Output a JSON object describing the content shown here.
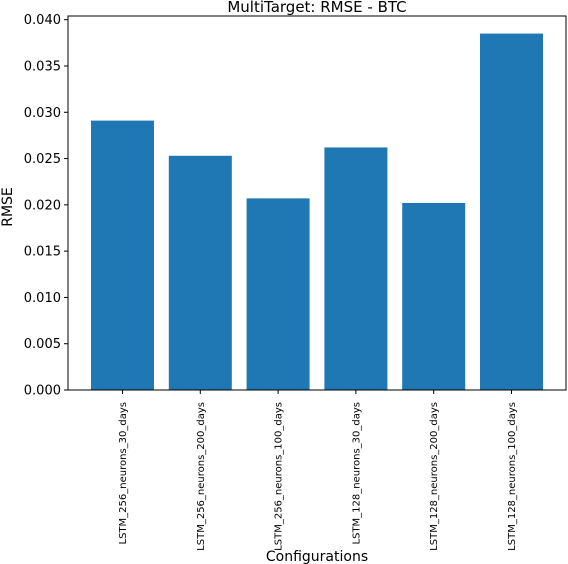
{
  "chart_data": {
    "type": "bar",
    "title": "MultiTarget: RMSE - BTC",
    "xlabel": "Configurations",
    "ylabel": "RMSE",
    "categories": [
      "LSTM_256_neurons_30_days",
      "LSTM_256_neurons_200_days",
      "LSTM_256_neurons_100_days",
      "LSTM_128_neurons_30_days",
      "LSTM_128_neurons_200_days",
      "LSTM_128_neurons_100_days"
    ],
    "values": [
      0.0291,
      0.0253,
      0.0207,
      0.0262,
      0.0202,
      0.0385
    ],
    "ylim": [
      0,
      0.0404
    ],
    "yticks": [
      "0.000",
      "0.005",
      "0.010",
      "0.015",
      "0.020",
      "0.025",
      "0.030",
      "0.035",
      "0.040"
    ],
    "bar_color": "#1f77b4",
    "grid": false,
    "legend": "none"
  }
}
